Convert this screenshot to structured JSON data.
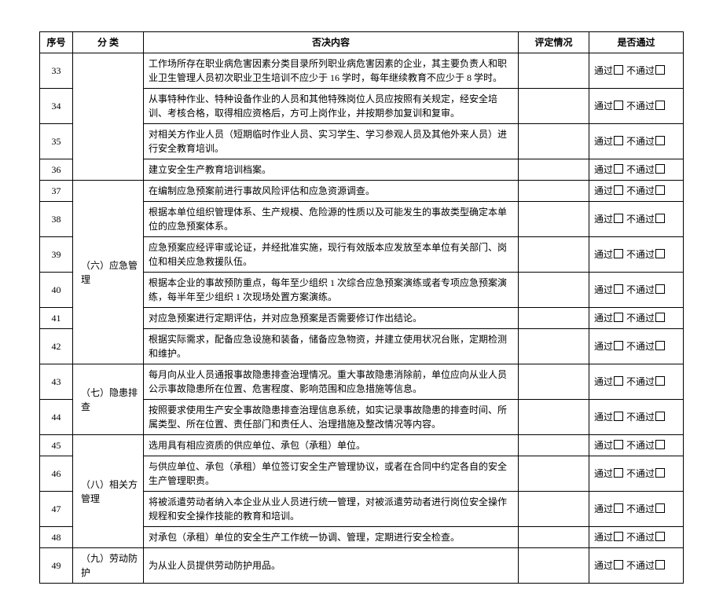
{
  "headers": {
    "seq": "序号",
    "cat": "分  类",
    "content": "否决内容",
    "eval": "评定情况",
    "pass": "是否通过"
  },
  "pass_label": "通过",
  "fail_label": "不通过",
  "rows": [
    {
      "seq": "33",
      "content": "工作场所存在职业病危害因素分类目录所列职业病危害因素的企业，其主要负责人和职业卫生管理人员初次职业卫生培训不应少于 16 学时，每年继续教育不应少于 8 学时。"
    },
    {
      "seq": "34",
      "content": "从事特种作业、特种设备作业的人员和其他特殊岗位人员应按照有关规定，经安全培训、考核合格，取得相应资格后，方可上岗作业，并按期参加复训和复审。"
    },
    {
      "seq": "35",
      "content": "对相关方作业人员（短期临时作业人员、实习学生、学习参观人员及其他外来人员）进行安全教育培训。"
    },
    {
      "seq": "36",
      "content": "建立安全生产教育培训档案。"
    },
    {
      "seq": "37",
      "content": "在编制应急预案前进行事故风险评估和应急资源调查。"
    },
    {
      "seq": "38",
      "content": "根据本单位组织管理体系、生产规模、危险源的性质以及可能发生的事故类型确定本单位的应急预案体系。"
    },
    {
      "seq": "39",
      "content": "应急预案应经评审或论证，并经批准实施，现行有效版本应发放至本单位有关部门、岗位和相关应急救援队伍。"
    },
    {
      "seq": "40",
      "content": "根据本企业的事故预防重点，每年至少组织 1 次综合应急预案演练或者专项应急预案演练，每半年至少组织 1 次现场处置方案演练。"
    },
    {
      "seq": "41",
      "content": "对应急预案进行定期评估，并对应急预案是否需要修订作出结论。"
    },
    {
      "seq": "42",
      "content": "根据实际需求，配备应急设施和装备，储备应急物资，并建立使用状况台账，定期检测和维护。"
    },
    {
      "seq": "43",
      "content": "每月向从业人员通报事故隐患排查治理情况。重大事故隐患消除前，单位应向从业人员公示事故隐患所在位置、危害程度、影响范围和应急措施等信息。"
    },
    {
      "seq": "44",
      "content": "按照要求使用生产安全事故隐患排查治理信息系统，如实记录事故隐患的排查时间、所属类型、所在位置、责任部门和责任人、治理措施及整改情况等内容。"
    },
    {
      "seq": "45",
      "content": "选用具有相应资质的供应单位、承包（承租）单位。"
    },
    {
      "seq": "46",
      "content": "与供应单位、承包（承租）单位签订安全生产管理协议，或者在合同中约定各自的安全生产管理职责。"
    },
    {
      "seq": "47",
      "content": "将被派遣劳动者纳入本企业从业人员进行统一管理，对被派遣劳动者进行岗位安全操作规程和安全操作技能的教育和培训。"
    },
    {
      "seq": "48",
      "content": "对承包（承租）单位的安全生产工作统一协调、管理，定期进行安全检查。"
    },
    {
      "seq": "49",
      "content": "为从业人员提供劳动防护用品。"
    }
  ],
  "categories": {
    "cat1": {
      "label": "",
      "start": 0,
      "span": 4
    },
    "cat2": {
      "label": "（六）应急管理",
      "start": 4,
      "span": 6
    },
    "cat3": {
      "label": "（七）隐患排查",
      "start": 10,
      "span": 2
    },
    "cat4": {
      "label": "（八）相关方管理",
      "start": 12,
      "span": 4
    },
    "cat5": {
      "label": "（九）劳动防护",
      "start": 16,
      "span": 1
    }
  }
}
